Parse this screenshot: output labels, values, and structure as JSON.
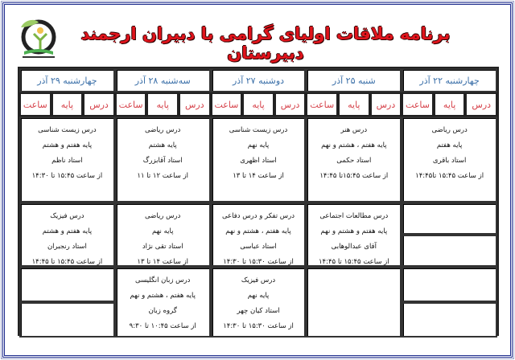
{
  "title": "برنامه ملاقات اولیای گرامی با دبیران ارجمند دبیرستان",
  "colors": {
    "title": "#e0141c",
    "day_header": "#3a6fa8",
    "sub_header": "#d6424a",
    "frame": "#1c2a8c",
    "unused_slot": "#c8c8c8"
  },
  "sub_headers": [
    "درس",
    "پایه",
    "ساعت"
  ],
  "days": [
    {
      "label": "چهارشنبه ۲۲ آذر",
      "slots": [
        {
          "type": "filled",
          "lines": [
            "درس ریاضی",
            "پایه هفتم",
            "استاد باقری",
            "از ساعت ۱۵:۴۵ تا۱۴:۴۵"
          ]
        },
        {
          "type": "gray"
        },
        {
          "type": "gray"
        }
      ]
    },
    {
      "label": "شنبه ۲۵ آذر",
      "slots": [
        {
          "type": "filled",
          "lines": [
            "درس هنر",
            "پایه هفتم ، هشتم و نهم",
            "استاد حکمی",
            "از ساعت ۱۵:۴۵تا ۱۴:۴۵"
          ]
        },
        {
          "type": "filled",
          "lines": [
            "درس مطالعات اجتماعی",
            "پایه هفتم و هشتم و نهم",
            "آقای عبدالوهابی",
            "از ساعت ۱۵:۴۵ تا ۱۴:۴۵"
          ]
        },
        {
          "type": "empty"
        }
      ]
    },
    {
      "label": "دوشنبه ۲۷ آذر",
      "slots": [
        {
          "type": "filled",
          "lines": [
            "درس زیست شناسی",
            "پایه نهم",
            "استاد اظهری",
            "از ساعت ۱۴ تا ۱۳"
          ]
        },
        {
          "type": "filled",
          "lines": [
            "درس تفکر و درس دفاعی",
            "پایه هفتم ، هشتم و نهم",
            "استاد عباسی",
            "از ساعت ۱۵:۳۰ تا ۱۴:۳۰"
          ]
        },
        {
          "type": "filled",
          "lines": [
            "درس فیزیک",
            "پایه نهم",
            "استاد کیان چهر",
            "از ساعت ۱۵:۳۰ تا ۱۴:۳۰"
          ]
        }
      ]
    },
    {
      "label": "سه‌شنبه ۲۸ آذر",
      "slots": [
        {
          "type": "filled",
          "lines": [
            "درس ریاضی",
            "پایه هشتم",
            "استاد آقابزرگ",
            "از ساعت ۱۲ تا ۱۱"
          ]
        },
        {
          "type": "filled",
          "lines": [
            "درس ریاضی",
            "پایه نهم",
            "استاد تقی نژاد",
            "از ساعت ۱۴ تا ۱۳"
          ]
        },
        {
          "type": "filled",
          "lines": [
            "درس زبان انگلیسی",
            "پایه هفتم ، هشتم و نهم",
            "گروه زبان",
            "از ساعت ۱۰:۴۵ تا ۹:۳۰"
          ]
        }
      ]
    },
    {
      "label": "چهارشنبه ۲۹ آذر",
      "slots": [
        {
          "type": "filled",
          "lines": [
            "درس زیست شناسی",
            "پایه هفتم و هشتم",
            "استاد ناظم",
            "از ساعت ۱۵:۴۵ تا ۱۴:۳۰"
          ]
        },
        {
          "type": "filled",
          "lines": [
            "درس فیزیک",
            "پایه هفتم و هشتم",
            "استاد رنجبران",
            "از ساعت ۱۵:۴۵ تا ۱۴:۴۵"
          ]
        },
        {
          "type": "gray"
        }
      ]
    }
  ]
}
